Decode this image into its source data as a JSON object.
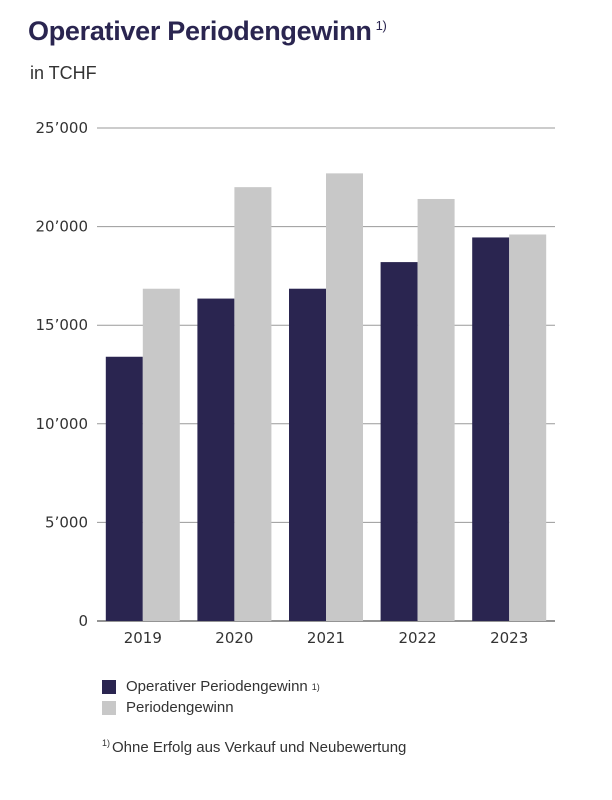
{
  "title": "Operativer Periodengewinn",
  "title_mark": "1)",
  "subtitle": "in TCHF",
  "footnote_mark": "1)",
  "footnote": "Ohne Erfolg aus Verkauf und Neubewertung",
  "chart_data": {
    "type": "bar",
    "categories": [
      "2019",
      "2020",
      "2021",
      "2022",
      "2023"
    ],
    "series": [
      {
        "name": "Operativer Periodengewinn",
        "name_mark": "1)",
        "color": "#2a2550",
        "values": [
          13400,
          16350,
          16850,
          18200,
          19450
        ]
      },
      {
        "name": "Periodengewinn",
        "color": "#c8c8c8",
        "values": [
          16850,
          22000,
          22700,
          21400,
          19600
        ]
      }
    ],
    "ylim": [
      0,
      25000
    ],
    "yticks": [
      0,
      5000,
      10000,
      15000,
      20000,
      25000
    ],
    "ytick_labels": [
      "0",
      "5’000",
      "10’000",
      "15’000",
      "20’000",
      "25’000"
    ],
    "grid": true,
    "legend_position": "bottom-left"
  }
}
